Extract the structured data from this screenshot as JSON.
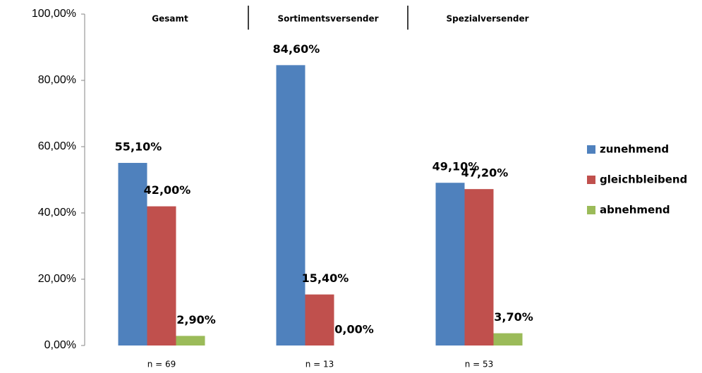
{
  "chart_data": {
    "type": "bar",
    "categories": [
      "Gesamt",
      "Sortimentsversender",
      "Spezialversender"
    ],
    "category_notes": [
      "n = 69",
      "n = 13",
      "n = 53"
    ],
    "series": [
      {
        "name": "zunehmend",
        "color": "#4f81bd",
        "values": [
          55.1,
          84.6,
          49.1
        ],
        "value_labels": [
          "55,10%",
          "84,60%",
          "49,10%"
        ]
      },
      {
        "name": "gleichbleibend",
        "color": "#c0504d",
        "values": [
          42.0,
          15.4,
          47.2
        ],
        "value_labels": [
          "42,00%",
          "15,40%",
          "47,20%"
        ]
      },
      {
        "name": "abnehmend",
        "color": "#9bbb59",
        "values": [
          2.9,
          0.0,
          3.7
        ],
        "value_labels": [
          "2,90%",
          "0,00%",
          "3,70%"
        ]
      }
    ],
    "ylim": [
      0,
      100
    ],
    "yticks": [
      {
        "value": 0,
        "label": "0,00%"
      },
      {
        "value": 20,
        "label": "20,00%"
      },
      {
        "value": 40,
        "label": "40,00%"
      },
      {
        "value": 60,
        "label": "60,00%"
      },
      {
        "value": 80,
        "label": "80,00%"
      },
      {
        "value": 100,
        "label": "100,00%"
      }
    ],
    "grid": false,
    "legend": "right"
  }
}
